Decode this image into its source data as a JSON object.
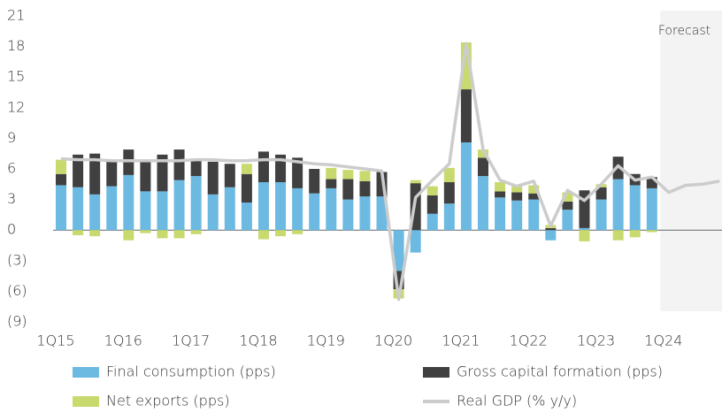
{
  "chart_data": {
    "type": "bar",
    "stacked": true,
    "annotation": "Forecast",
    "categories": [
      "1Q15",
      null,
      null,
      null,
      "1Q16",
      null,
      null,
      null,
      "1Q17",
      null,
      null,
      null,
      "1Q18",
      null,
      null,
      null,
      "1Q19",
      null,
      null,
      null,
      "1Q20",
      null,
      null,
      null,
      "1Q21",
      null,
      null,
      null,
      "1Q22",
      null,
      null,
      null,
      "1Q23",
      null,
      null,
      null,
      "1Q24",
      null,
      null,
      null
    ],
    "ylim": [
      -9,
      21
    ],
    "yticks": [
      {
        "value": -9,
        "label": "(9)"
      },
      {
        "value": -6,
        "label": "(6)"
      },
      {
        "value": -3,
        "label": "(3)"
      },
      0,
      3,
      6,
      9,
      12,
      15,
      18,
      21
    ],
    "series": [
      {
        "name": "Final consumption (pps)",
        "type": "bar",
        "color": "#6cb9e2",
        "values": [
          4.4,
          4.2,
          3.5,
          4.3,
          5.4,
          3.8,
          3.8,
          4.9,
          5.3,
          3.5,
          4.2,
          2.7,
          4.7,
          4.7,
          4.1,
          3.6,
          4.1,
          3.0,
          3.3,
          3.3,
          -4.0,
          -2.2,
          1.6,
          2.6,
          8.6,
          5.3,
          3.2,
          2.9,
          3.0,
          -1.0,
          2.0,
          0.2,
          3.0,
          5.0,
          4.4,
          4.1,
          null,
          null,
          null,
          null
        ]
      },
      {
        "name": "Gross capital formation (pps)",
        "type": "bar",
        "color": "#404040",
        "values": [
          1.1,
          3.2,
          4.0,
          2.6,
          2.5,
          3.1,
          3.6,
          3.0,
          1.7,
          3.2,
          2.3,
          2.8,
          3.0,
          2.7,
          3.0,
          2.4,
          0.9,
          2.0,
          1.5,
          2.4,
          -1.8,
          4.6,
          1.8,
          2.1,
          5.2,
          1.8,
          0.6,
          0.8,
          0.6,
          0.2,
          0.8,
          3.7,
          1.2,
          2.2,
          1.1,
          1.1,
          null,
          null,
          null,
          null
        ]
      },
      {
        "name": "Net exports (pps)",
        "type": "bar",
        "color": "#c8d96e",
        "values": [
          1.4,
          -0.5,
          -0.6,
          0,
          -1.0,
          -0.3,
          -0.8,
          -0.8,
          -0.4,
          0,
          0,
          1.0,
          -0.9,
          -0.6,
          -0.4,
          0,
          1.1,
          0.9,
          1.0,
          0,
          -0.9,
          0.3,
          0.9,
          1.4,
          4.6,
          0.8,
          0.9,
          0.7,
          0.8,
          0.3,
          0.9,
          -1.1,
          0.3,
          -1.0,
          -0.7,
          -0.2,
          null,
          null,
          null,
          null
        ]
      },
      {
        "name": "Real GDP (% y/y)",
        "type": "line",
        "color": "#cccccc",
        "values": [
          7.0,
          6.9,
          6.9,
          6.8,
          6.8,
          6.8,
          6.8,
          6.8,
          6.9,
          6.9,
          6.8,
          6.8,
          6.9,
          6.9,
          6.7,
          6.5,
          6.4,
          6.2,
          6.0,
          5.8,
          -6.8,
          3.2,
          4.9,
          6.5,
          18.3,
          7.9,
          4.9,
          4.3,
          4.8,
          0.4,
          3.9,
          2.9,
          4.5,
          6.3,
          4.9,
          5.2,
          3.7,
          4.4,
          4.5,
          4.8
        ]
      }
    ]
  }
}
